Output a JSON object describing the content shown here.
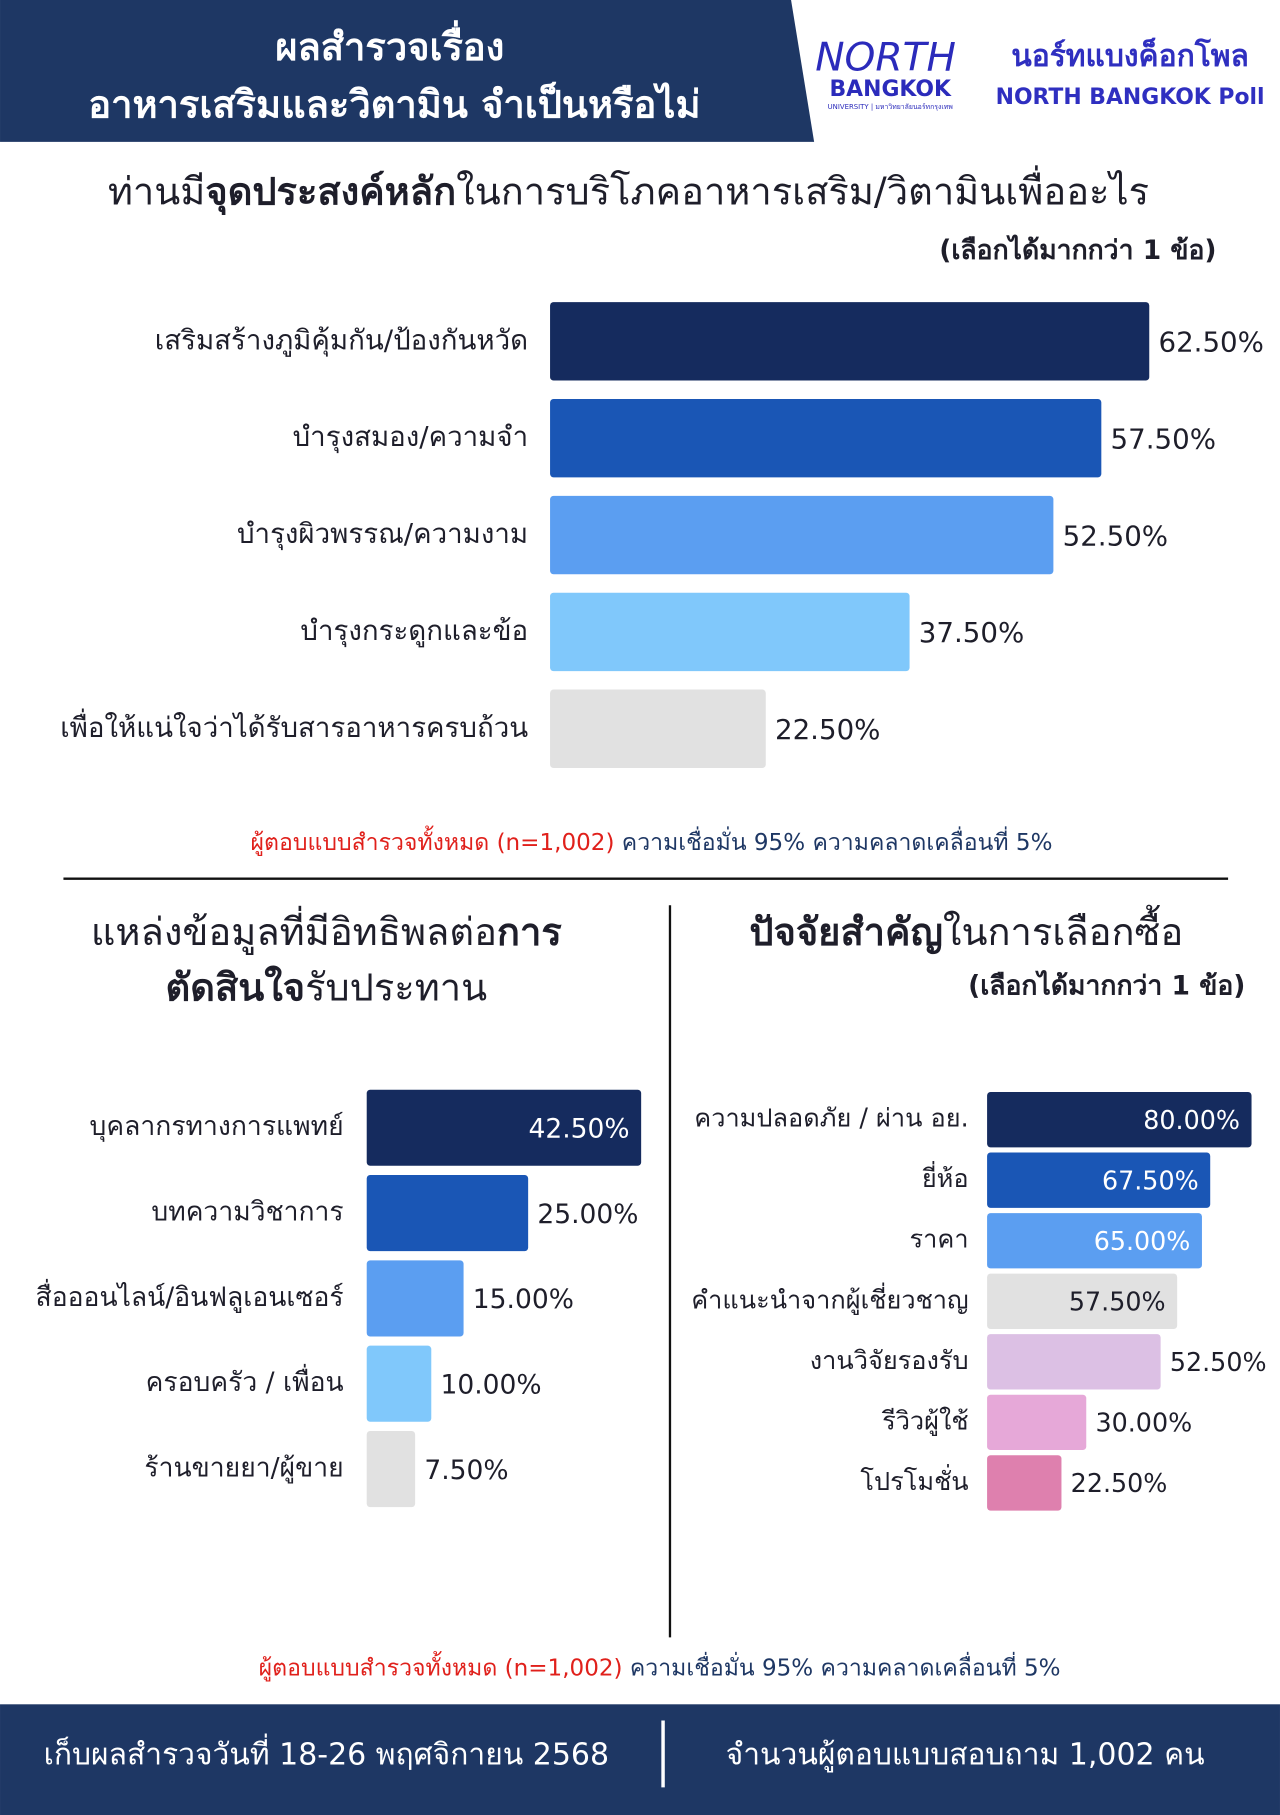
{
  "header": {
    "title_lines": [
      "ผลสำรวจเรื่อง",
      "อาหารเสริมและวิตามิน จำเป็นหรือไม่"
    ],
    "logo_north": "NORTH",
    "logo_bangkok": "BANGKOK",
    "logo_small": "UNIVERSITY | มหาวิทยาลัยนอร์ทกรุงเทพ",
    "poll_thai": "นอร์ทแบงค็อกโพล",
    "poll_en": "NORTH BANGKOK Poll"
  },
  "chart_data": [
    {
      "type": "hbar",
      "title": [
        [
          {
            "text": "ท่านมี"
          },
          {
            "text": "จุดประสงค์หลัก",
            "bold": true
          },
          {
            "text": "ในการบริโภคอาหารเสริม/วิตามินเพื่ออะไร"
          }
        ]
      ],
      "subtitle": "(เลือกได้มากกว่า 1 ข้อ)",
      "categories": [
        "เสริมสร้างภูมิคุ้มกัน/ป้องกันหวัด",
        "บำรุงสมอง/ความจำ",
        "บำรุงผิวพรรณ/ความงาม",
        "บำรุงกระดูกและข้อ",
        "เพื่อให้แน่ใจว่าได้รับสารอาหารครบถ้วน"
      ],
      "values": [
        62.5,
        57.5,
        52.5,
        37.5,
        22.5
      ],
      "value_labels": [
        "62.50%",
        "57.50%",
        "52.50%",
        "37.50%",
        "22.50%"
      ],
      "colors": [
        "#152b5e",
        "#1a56b5",
        "#5b9ef1",
        "#80c8fb",
        "#e1e1e1"
      ],
      "xlim": [
        0,
        70
      ]
    },
    {
      "type": "hbar",
      "title": [
        [
          {
            "text": "แหล่งข้อมูลที่มีอิทธิพลต่อ"
          },
          {
            "text": "การ",
            "bold": true
          }
        ],
        [
          {
            "text": "ตัดสินใจ",
            "bold": true
          },
          {
            "text": "รับประทาน"
          }
        ]
      ],
      "categories": [
        "บุคลากรทางการแพทย์",
        "บทความวิชาการ",
        "สื่อออนไลน์/อินฟลูเอนเซอร์",
        "ครอบครัว / เพื่อน",
        "ร้านขายยา/ผู้ขาย"
      ],
      "values": [
        42.5,
        25.0,
        15.0,
        10.0,
        7.5
      ],
      "value_labels": [
        "42.50%",
        "25.00%",
        "15.00%",
        "10.00%",
        "7.50%"
      ],
      "colors": [
        "#152b5e",
        "#1a56b5",
        "#5b9ef1",
        "#80c8fb",
        "#e1e1e1"
      ],
      "xlim": [
        0,
        45
      ]
    },
    {
      "type": "hbar",
      "title": [
        [
          {
            "text": "ปัจจัยสำคัญ",
            "bold": true
          },
          {
            "text": "ในการเลือกซื้อ"
          }
        ]
      ],
      "subtitle": "(เลือกได้มากกว่า 1 ข้อ)",
      "categories": [
        "ความปลอดภัย / ผ่าน อย.",
        "ยี่ห้อ",
        "ราคา",
        "คำแนะนำจากผู้เชี่ยวชาญ",
        "งานวิจัยรองรับ",
        "รีวิวผู้ใช้",
        "โปรโมชั่น"
      ],
      "values": [
        80.0,
        67.5,
        65.0,
        57.5,
        52.5,
        30.0,
        22.5
      ],
      "value_labels": [
        "80.00%",
        "67.50%",
        "65.00%",
        "57.50%",
        "52.50%",
        "30.00%",
        "22.50%"
      ],
      "colors": [
        "#152b5e",
        "#1a56b5",
        "#5b9ef1",
        "#e1e1e1",
        "#dcc0e4",
        "#e6a8d8",
        "#de80ae"
      ],
      "xlim": [
        0,
        90
      ]
    }
  ],
  "notes": [
    {
      "red": "ผู้ตอบแบบสำรวจทั้งหมด (n=1,002)",
      "rest": "ความเชื่อมั่น 95% ความคลาดเคลื่อนที่ 5%"
    },
    {
      "red": "ผู้ตอบแบบสำรวจทั้งหมด (n=1,002)",
      "rest": "ความเชื่อมั่น 95% ความคลาดเคลื่อนที่ 5%"
    }
  ],
  "footer": {
    "date": "เก็บผลสำรวจวันที่ 18-26 พฤศจิกายน 2568",
    "count": "จำนวนผู้ตอบแบบสอบถาม 1,002 คน"
  }
}
